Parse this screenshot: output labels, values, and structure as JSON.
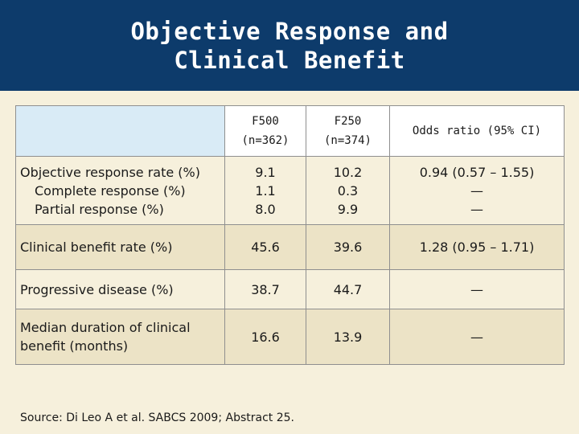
{
  "title": {
    "line1": "Objective Response and",
    "line2": "Clinical Benefit"
  },
  "table": {
    "headers": [
      {
        "line1": "",
        "line2": ""
      },
      {
        "line1": "F500",
        "line2": "(n=362)"
      },
      {
        "line1": "F250",
        "line2": "(n=374)"
      },
      {
        "line1": "Odds ratio (95% CI)",
        "line2": ""
      }
    ],
    "rows": [
      {
        "labels": [
          "Objective response rate (%)",
          "Complete response (%)",
          "Partial response (%)"
        ],
        "f500": [
          "9.1",
          "1.1",
          "8.0"
        ],
        "f250": [
          "10.2",
          "0.3",
          "9.9"
        ],
        "odds": [
          "0.94 (0.57 – 1.55)",
          "—",
          "—"
        ]
      },
      {
        "labels": [
          "Clinical benefit rate (%)"
        ],
        "f500": [
          "45.6"
        ],
        "f250": [
          "39.6"
        ],
        "odds": [
          "1.28 (0.95 – 1.71)"
        ]
      },
      {
        "labels": [
          "Progressive disease (%)"
        ],
        "f500": [
          "38.7"
        ],
        "f250": [
          "44.7"
        ],
        "odds": [
          "—"
        ]
      },
      {
        "labels": [
          "Median duration of clinical",
          "benefit (months)"
        ],
        "f500": [
          "16.6"
        ],
        "f250": [
          "13.9"
        ],
        "odds": [
          "—"
        ]
      }
    ]
  },
  "source": "Source: Di Leo A et al. SABCS 2009; Abstract 25.",
  "colors": {
    "title_bg": "#0d3b6b",
    "page_bg": "#f6f0dc",
    "row_shade": "#ece3c6",
    "header_blank": "#d9ebf6"
  }
}
